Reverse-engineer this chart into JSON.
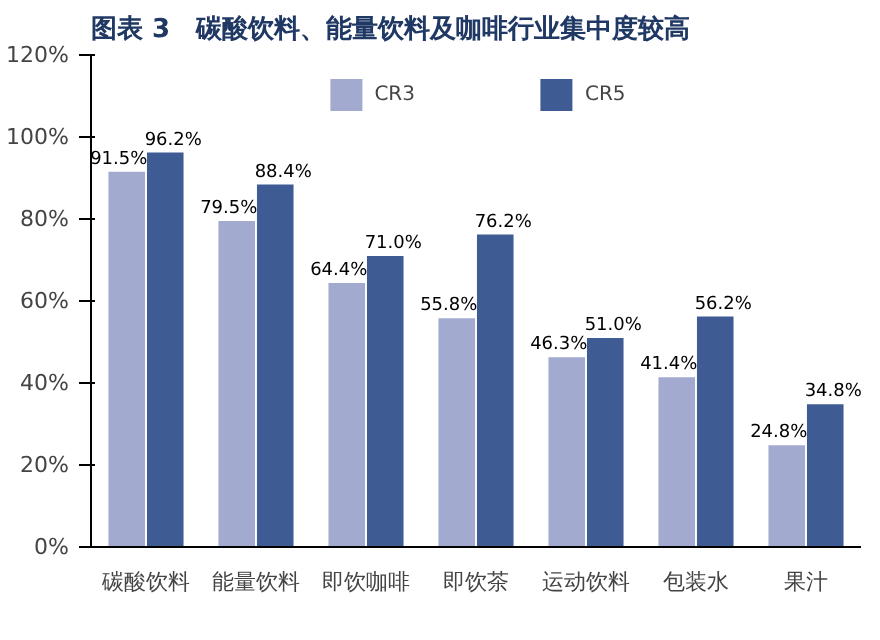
{
  "chart_data": {
    "type": "bar",
    "title": "图表 3　碳酸饮料、能量饮料及咖啡行业集中度较高",
    "categories": [
      "碳酸饮料",
      "能量饮料",
      "即饮咖啡",
      "即饮茶",
      "运动饮料",
      "包装水",
      "果汁"
    ],
    "series": [
      {
        "name": "CR3",
        "color": "#a2aad0",
        "values": [
          91.5,
          79.5,
          64.4,
          55.8,
          46.3,
          41.4,
          24.8
        ],
        "value_labels": [
          "91.5%",
          "79.5%",
          "64.4%",
          "55.8%",
          "46.3%",
          "41.4%",
          "24.8%"
        ]
      },
      {
        "name": "CR5",
        "color": "#3f5b93",
        "values": [
          96.2,
          88.4,
          71.0,
          76.2,
          51.0,
          56.2,
          34.8
        ],
        "value_labels": [
          "96.2%",
          "88.4%",
          "71.0%",
          "76.2%",
          "51.0%",
          "56.2%",
          "34.8%"
        ]
      }
    ],
    "ylim": [
      0,
      120
    ],
    "yticks": [
      {
        "value": 0,
        "label": "0%"
      },
      {
        "value": 20,
        "label": "20%"
      },
      {
        "value": 40,
        "label": "40%"
      },
      {
        "value": 60,
        "label": "60%"
      },
      {
        "value": 80,
        "label": "80%"
      },
      {
        "value": 100,
        "label": "100%"
      },
      {
        "value": 120,
        "label": "120%"
      }
    ],
    "grid": false,
    "legend": "top"
  }
}
